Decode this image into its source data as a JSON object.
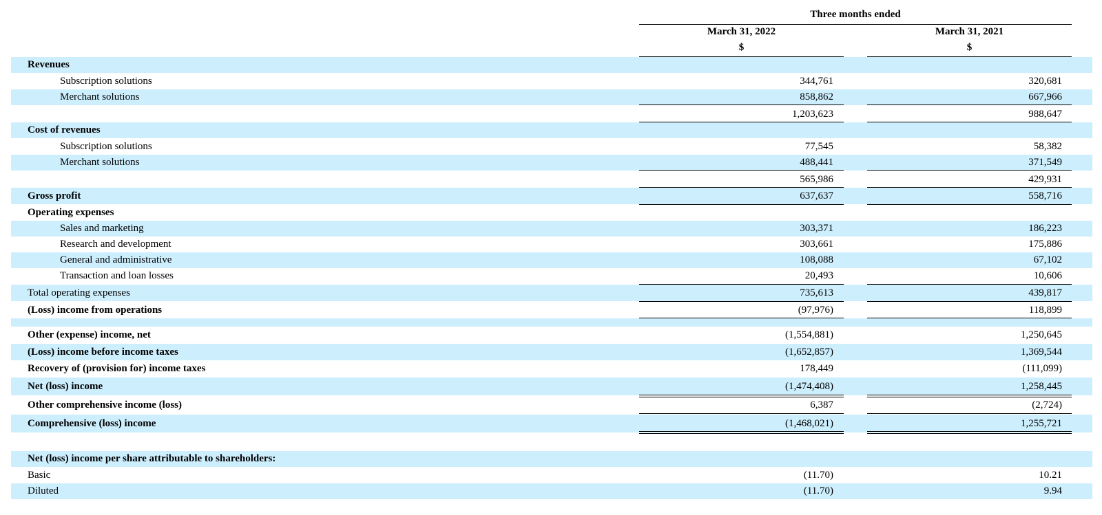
{
  "header": {
    "period_title": "Three months ended",
    "columns": [
      {
        "date": "March 31, 2022",
        "currency": "$"
      },
      {
        "date": "March 31, 2021",
        "currency": "$"
      }
    ]
  },
  "rows": [
    {
      "label": "Revenues",
      "v1": "",
      "v2": ""
    },
    {
      "label": "Subscription solutions",
      "v1": "344,761",
      "v2": "320,681"
    },
    {
      "label": "Merchant solutions",
      "v1": "858,862",
      "v2": "667,966"
    },
    {
      "label": "",
      "v1": "1,203,623",
      "v2": "988,647"
    },
    {
      "label": "Cost of revenues",
      "v1": "",
      "v2": ""
    },
    {
      "label": "Subscription solutions",
      "v1": "77,545",
      "v2": "58,382"
    },
    {
      "label": "Merchant solutions",
      "v1": "488,441",
      "v2": "371,549"
    },
    {
      "label": "",
      "v1": "565,986",
      "v2": "429,931"
    },
    {
      "label": "Gross profit",
      "v1": "637,637",
      "v2": "558,716"
    },
    {
      "label": "Operating expenses",
      "v1": "",
      "v2": ""
    },
    {
      "label": "Sales and marketing",
      "v1": "303,371",
      "v2": "186,223"
    },
    {
      "label": "Research and development",
      "v1": "303,661",
      "v2": "175,886"
    },
    {
      "label": "General and administrative",
      "v1": "108,088",
      "v2": "67,102"
    },
    {
      "label": "Transaction and loan losses",
      "v1": "20,493",
      "v2": "10,606"
    },
    {
      "label": "Total operating expenses",
      "v1": "735,613",
      "v2": "439,817"
    },
    {
      "label": "(Loss) income from operations",
      "v1": "(97,976)",
      "v2": "118,899"
    },
    {
      "label": "",
      "v1": "",
      "v2": ""
    },
    {
      "label": "Other (expense) income, net",
      "v1": "(1,554,881)",
      "v2": "1,250,645"
    },
    {
      "label": "(Loss) income before income taxes",
      "v1": "(1,652,857)",
      "v2": "1,369,544"
    },
    {
      "label": "Recovery of (provision for) income taxes",
      "v1": "178,449",
      "v2": "(111,099)"
    },
    {
      "label": "Net (loss) income",
      "v1": "(1,474,408)",
      "v2": "1,258,445"
    },
    {
      "label": "Other comprehensive income (loss)",
      "v1": "6,387",
      "v2": "(2,724)"
    },
    {
      "label": "Comprehensive (loss) income",
      "v1": "(1,468,021)",
      "v2": "1,255,721"
    },
    {
      "label": "",
      "v1": "",
      "v2": ""
    },
    {
      "label": "Net (loss) income per share attributable to shareholders:",
      "v1": "",
      "v2": ""
    },
    {
      "label": "Basic",
      "v1": "(11.70)",
      "v2": "10.21"
    },
    {
      "label": "Diluted",
      "v1": "(11.70)",
      "v2": "9.94"
    }
  ]
}
